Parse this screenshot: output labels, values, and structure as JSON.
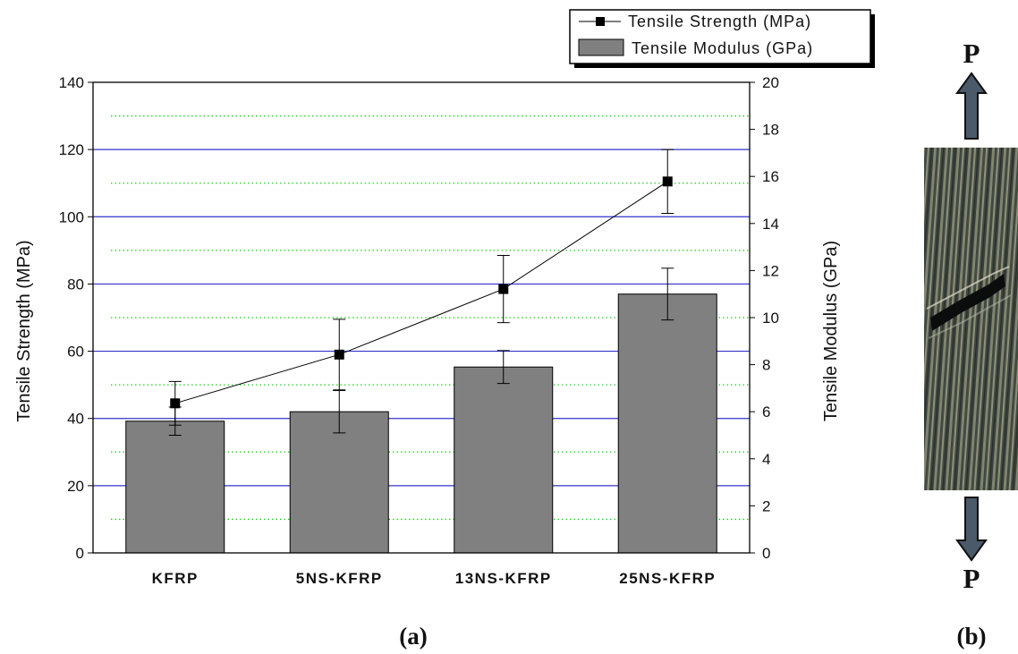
{
  "chart_data": {
    "type": "bar",
    "categories": [
      "KFRP",
      "5NS-KFRP",
      "13NS-KFRP",
      "25NS-KFRP"
    ],
    "series": [
      {
        "name": "Tensile Modulus (GPa)",
        "type": "bar",
        "axis": "right",
        "values": [
          5.6,
          6.0,
          7.9,
          11.0
        ],
        "error": [
          0.6,
          0.9,
          0.7,
          1.1
        ],
        "color": "#808080"
      },
      {
        "name": "Tensile Strength (MPa)",
        "type": "line",
        "axis": "left",
        "values": [
          44.5,
          59,
          78.5,
          110.5
        ],
        "error": [
          6.5,
          10.5,
          10,
          9.5
        ],
        "color": "#000000"
      }
    ],
    "ylabel": "Tensile Strength (MPa)",
    "ylabel_right": "Tensile Modulus (GPa)",
    "ylim": [
      0,
      140
    ],
    "ylim_right": [
      0,
      20
    ],
    "yticks": [
      "0",
      "20",
      "40",
      "60",
      "80",
      "100",
      "120",
      "140"
    ],
    "yticks_right": [
      "0",
      "2",
      "4",
      "6",
      "8",
      "10",
      "12",
      "14",
      "16",
      "18",
      "20"
    ],
    "major_grid_color": "#3333cc",
    "minor_grid_color": "#22cc22",
    "legend_position": "top-right",
    "panel_label": "(a)"
  },
  "specimen": {
    "load_label_top": "P",
    "load_label_bottom": "P",
    "arrow_color": "#4a5a6a",
    "panel_label": "(b)"
  }
}
